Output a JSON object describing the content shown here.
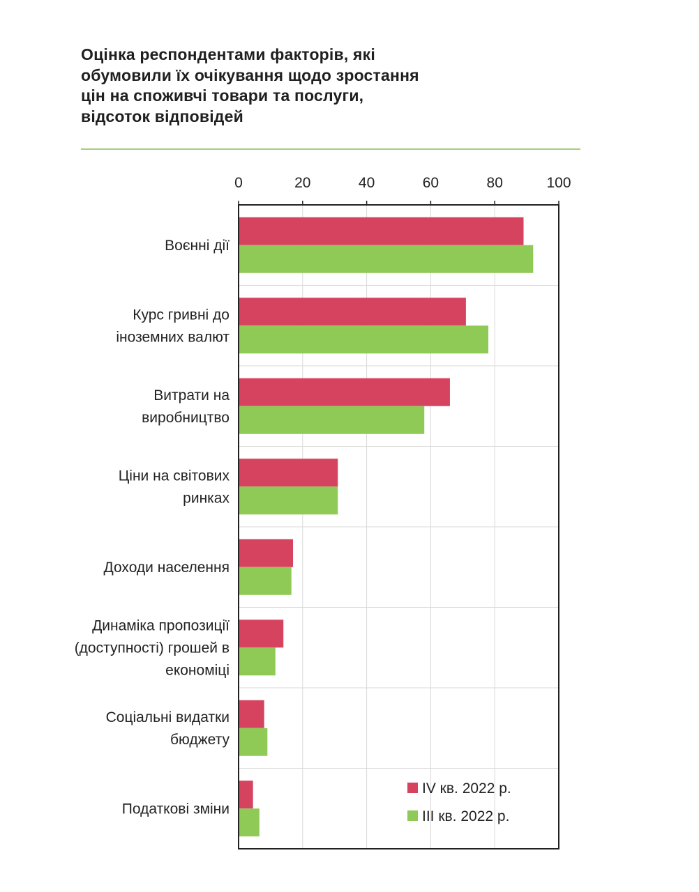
{
  "title_lines": [
    "Оцінка респондентами факторів, які",
    "обумовили їх очікування щодо зростання",
    "цін на споживчі товари та послуги,",
    "відсоток відповідей"
  ],
  "colors": {
    "series_q4": "#d6435f",
    "series_q3": "#8fca57",
    "title_rule": "#a6cf78",
    "grid": "#d9d9d9",
    "frame": "#222222"
  },
  "chart_data": {
    "type": "bar",
    "orientation": "horizontal",
    "title": "Оцінка респондентами факторів, які обумовили їх очікування щодо зростання цін на споживчі товари та послуги, відсоток відповідей",
    "xlim": [
      0,
      100
    ],
    "x_ticks": [
      0,
      20,
      40,
      60,
      80,
      100
    ],
    "x_axis_position": "top",
    "grid": true,
    "legend_position": "bottom-right",
    "categories": [
      [
        "Воєнні дії"
      ],
      [
        "Курс гривні до",
        "іноземних валют"
      ],
      [
        "Витрати на",
        "виробництво"
      ],
      [
        "Ціни на світових",
        "ринках"
      ],
      [
        "Доходи населення"
      ],
      [
        "Динаміка пропозиції",
        "(доступності) грошей в",
        "економіці"
      ],
      [
        "Соціальні видатки",
        "бюджету"
      ],
      [
        "Податкові зміни"
      ]
    ],
    "series": [
      {
        "name": "IV кв. 2022 р.",
        "color": "#d6435f",
        "values": [
          89,
          71,
          66,
          31,
          17,
          14,
          8,
          4.5
        ]
      },
      {
        "name": "III кв. 2022 р.",
        "color": "#8fca57",
        "values": [
          92,
          78,
          58,
          31,
          16.5,
          11.5,
          9,
          6.5
        ]
      }
    ]
  }
}
